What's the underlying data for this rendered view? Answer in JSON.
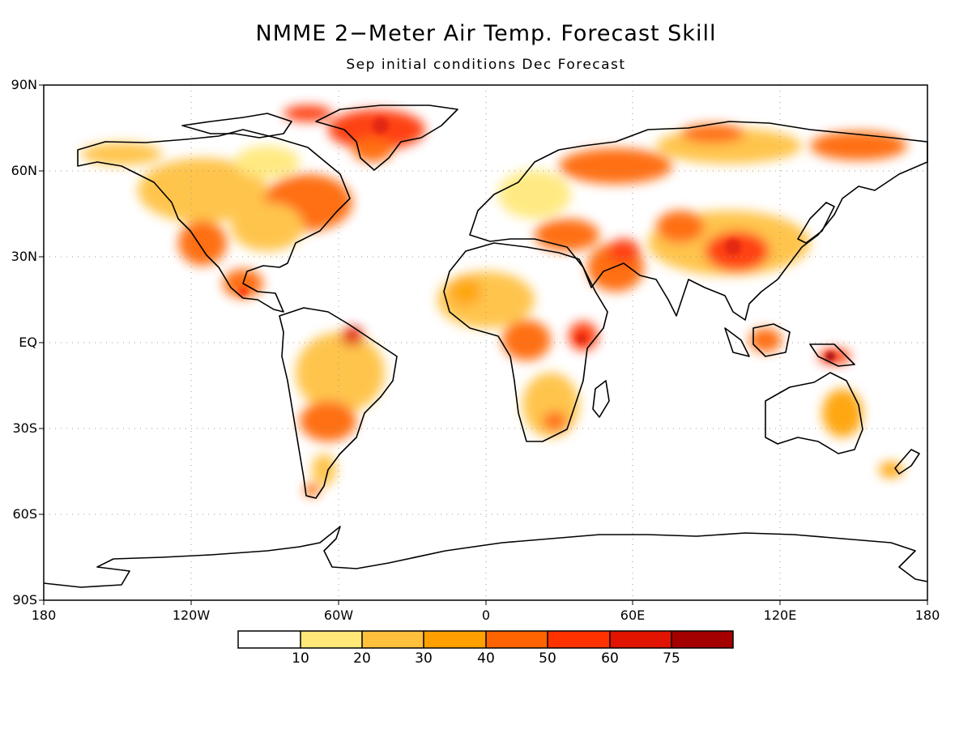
{
  "title": "NMME 2−Meter Air Temp. Forecast Skill",
  "subtitle": "Sep initial conditions   Dec Forecast",
  "lat_labels": [
    "90N",
    "60N",
    "30N",
    "EQ",
    "30S",
    "60S",
    "90S"
  ],
  "lon_labels": [
    "180",
    "120W",
    "60W",
    "0",
    "60E",
    "120E",
    "180"
  ],
  "colorbar": {
    "labels": [
      "10",
      "20",
      "30",
      "40",
      "50",
      "60",
      "75"
    ],
    "colors": [
      "#ffffff",
      "#ffe878",
      "#ffc03c",
      "#ffa000",
      "#ff6400",
      "#ff3200",
      "#e11400",
      "#a50000"
    ]
  },
  "colors": {
    "land_fill": "#ffffff",
    "coastline": "#000000",
    "grid": "#999999"
  }
}
